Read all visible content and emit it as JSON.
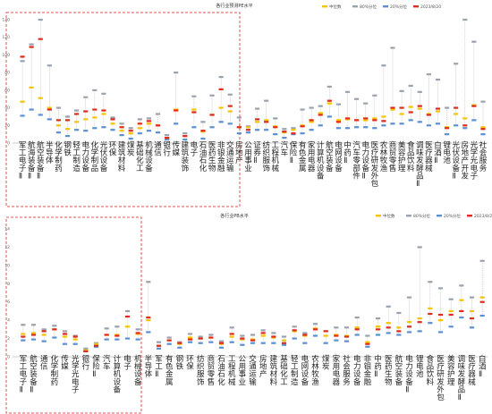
{
  "chart_data": [
    {
      "type": "scatter",
      "title": "各行业预测PE水平",
      "legend": [
        "中位数",
        "80%分位",
        "20%分位",
        "2023/8/20"
      ],
      "legend_position": "top-right",
      "ylim": [
        0,
        140
      ],
      "yticks": [
        "0",
        "20",
        "40",
        "60",
        "80",
        "100",
        "120",
        "140"
      ],
      "highlight_count": 18,
      "categories": [
        "军工电子Ⅱ",
        "航海装备Ⅱ",
        "航空装备Ⅱ",
        "半导体",
        "化学制药",
        "钢铁",
        "轻工制造",
        "电力设备",
        "化学制品",
        "光伏设备",
        "环保",
        "建筑材料",
        "煤炭",
        "基础化工",
        "机械设备",
        "通信",
        "银行",
        "传媒",
        "建筑装饰",
        "电子",
        "石油石化",
        "医药生物",
        "非银金融",
        "交通运输",
        "房地产",
        "公用事业",
        "证券Ⅱ",
        "纺织服饰",
        "工程机械",
        "汽车",
        "保险Ⅱ",
        "有色金属",
        "家用电器",
        "计算机设备",
        "航空装备",
        "电网设备",
        "中药Ⅱ",
        "汽车零部件",
        "电力设备Ⅱ",
        "医疗研发外包",
        "农林牧渔",
        "商贸零售",
        "美容护理",
        "食品饮料",
        "调味发酵品Ⅱ",
        "医疗器械",
        "白酒Ⅱ",
        "锂电池",
        "光伏设备Ⅱ",
        "房地产开发",
        "光学光电子",
        "社会服务"
      ],
      "series": [
        {
          "name": "中位数",
          "values": [
            47,
            63,
            51,
            40,
            20,
            16,
            24,
            27,
            29,
            33,
            22,
            14,
            11,
            17,
            22,
            20,
            6,
            38,
            8,
            38,
            13,
            32,
            40,
            36,
            18,
            18,
            24,
            26,
            19,
            12,
            15,
            20,
            24,
            34,
            45,
            26,
            27,
            26,
            26,
            28,
            30,
            38,
            33,
            41,
            39,
            33,
            36,
            18,
            33,
            28,
            43,
            18
          ]
        },
        {
          "name": "80%分位",
          "values": [
            93,
            112,
            140,
            88,
            40,
            30,
            37,
            52,
            60,
            56,
            29,
            22,
            17,
            27,
            28,
            33,
            9,
            80,
            11,
            53,
            24,
            54,
            75,
            55,
            29,
            19,
            39,
            48,
            28,
            16,
            17,
            38,
            40,
            42,
            64,
            44,
            58,
            50,
            45,
            54,
            88,
            108,
            59,
            65,
            58,
            78,
            72,
            40,
            90,
            140,
            115,
            47
          ]
        },
        {
          "name": "20%分位",
          "values": [
            31,
            38,
            32,
            27,
            12,
            8,
            15,
            14,
            17,
            18,
            15,
            9,
            5,
            11,
            14,
            12,
            4,
            22,
            4,
            18,
            5,
            18,
            24,
            22,
            11,
            12,
            15,
            15,
            10,
            6,
            10,
            11,
            15,
            20,
            30,
            17,
            17,
            18,
            18,
            17,
            20,
            22,
            22,
            26,
            24,
            20,
            22,
            10,
            20,
            17,
            26,
            10
          ]
        },
        {
          "name": "2023/8/20",
          "values": [
            98,
            109,
            118,
            38,
            26,
            26,
            33,
            36,
            38,
            37,
            27,
            18,
            14,
            22,
            25,
            20,
            6,
            37,
            8,
            35,
            14,
            32,
            61,
            42,
            18,
            15,
            27,
            24,
            18,
            13,
            11,
            19,
            26,
            32,
            48,
            24,
            28,
            26,
            28,
            26,
            25,
            40,
            40,
            35,
            42,
            32,
            39,
            17,
            40,
            20,
            42,
            16
          ]
        }
      ]
    },
    {
      "type": "scatter",
      "title": "各行业PB水平",
      "legend": [
        "中位数",
        "80%分位",
        "20%分位",
        "2023/8/20"
      ],
      "legend_position": "top-right",
      "ylim": [
        0,
        14
      ],
      "yticks": [
        "0",
        "2",
        "4",
        "6",
        "8",
        "10",
        "12",
        "14"
      ],
      "highlight_count": 15,
      "categories": [
        "军工电子Ⅱ",
        "航空装备Ⅱ",
        "通信",
        "化学制药",
        "传媒",
        "光学光电子",
        "银行",
        "保险Ⅱ",
        "汽车",
        "计算机设备",
        "电子",
        "机械设备",
        "半导体",
        "军工Ⅱ",
        "有色金属",
        "钢铁",
        "环保",
        "纺织服饰",
        "商贸零售",
        "石油石化",
        "工程机械",
        "公用事业",
        "交通运输",
        "房地产",
        "建筑材料",
        "基础化工",
        "轻工制造",
        "电网设备",
        "农林牧渔",
        "煤炭",
        "家用电器",
        "社会服务",
        "电力设备",
        "非银金融",
        "中药Ⅱ",
        "医药生物",
        "航空装备",
        "电力设备Ⅱ",
        "锂电池",
        "食品饮料",
        "医疗研发外包",
        "美容护理",
        "调味发酵品Ⅱ",
        "医疗器械",
        "白酒Ⅱ"
      ],
      "series": [
        {
          "name": "中位数",
          "values": [
            2.5,
            2.6,
            2.4,
            3.0,
            2.2,
            1.9,
            0.7,
            1.4,
            2.4,
            2.4,
            3.3,
            2.5,
            4.0,
            1.2,
            1.8,
            1.4,
            2.1,
            2.0,
            2.1,
            1.4,
            2.2,
            1.9,
            1.9,
            2.3,
            2.1,
            1.8,
            2.8,
            2.3,
            3.1,
            2.3,
            2.4,
            2.3,
            3.2,
            1.6,
            3.3,
            3.7,
            3.2,
            3.8,
            4.2,
            5.3,
            4.0,
            5.0,
            6.2,
            5.0,
            6.5
          ]
        },
        {
          "name": "80%分位",
          "values": [
            3.5,
            3.5,
            3.0,
            3.4,
            2.8,
            2.3,
            0.9,
            1.5,
            3.1,
            3.3,
            5.0,
            3.0,
            8.2,
            1.6,
            2.1,
            1.6,
            2.5,
            2.2,
            2.4,
            1.7,
            3.2,
            2.3,
            2.4,
            2.9,
            2.6,
            2.2,
            3.3,
            2.6,
            3.6,
            2.8,
            3.2,
            3.2,
            4.3,
            2.3,
            4.2,
            5.5,
            4.8,
            6.5,
            12.0,
            8.2,
            7.5,
            6.3,
            7.8,
            6.5,
            10.5
          ]
        },
        {
          "name": "20%分位",
          "values": [
            1.8,
            1.9,
            1.7,
            2.1,
            1.4,
            1.4,
            0.6,
            1.1,
            1.9,
            1.9,
            2.0,
            1.9,
            2.7,
            0.9,
            1.4,
            1.0,
            1.6,
            1.5,
            1.6,
            1.0,
            1.6,
            1.3,
            1.5,
            1.5,
            1.5,
            1.3,
            2.0,
            1.5,
            2.3,
            1.5,
            1.8,
            1.7,
            2.4,
            1.1,
            2.4,
            2.6,
            2.4,
            2.7,
            2.8,
            3.7,
            2.7,
            3.3,
            4.3,
            3.2,
            4.5
          ]
        },
        {
          "name": "2023/8/20",
          "values": [
            2.2,
            2.4,
            2.8,
            3.0,
            2.5,
            2.2,
            0.6,
            1.2,
            2.4,
            2.3,
            4.4,
            2.6,
            4.3,
            1.2,
            1.8,
            1.5,
            1.9,
            2.0,
            2.1,
            1.5,
            2.5,
            2.0,
            1.8,
            2.6,
            2.2,
            1.5,
            2.9,
            2.4,
            3.0,
            2.8,
            2.3,
            2.2,
            3.0,
            1.4,
            3.0,
            3.2,
            2.8,
            3.3,
            3.8,
            4.7,
            4.6,
            4.6,
            5.0,
            4.2,
            6.0
          ]
        }
      ]
    }
  ],
  "colors": {
    "median": "#f5c400",
    "p80": "#9aa3ad",
    "p20": "#5b8fd4",
    "current": "#e02b1e",
    "highlight_box": "#e05050",
    "connector": "#b5b5b5",
    "axis": "#999999"
  }
}
